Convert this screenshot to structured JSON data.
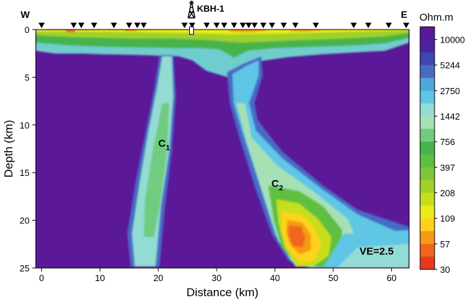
{
  "chart_data": {
    "type": "heatmap",
    "subtype": "resistivity-section",
    "xlabel": "Distance (km)",
    "ylabel": "Depth (km)",
    "xlim": [
      -1,
      63
    ],
    "ylim": [
      0,
      25
    ],
    "x_ticks": [
      0,
      10,
      20,
      30,
      40,
      50,
      60
    ],
    "y_ticks": [
      0,
      5,
      10,
      15,
      20,
      25
    ],
    "y_inverted": true,
    "corner_labels": {
      "west": "W",
      "east": "E"
    },
    "well": {
      "label": "KBH-1",
      "x": 25.7
    },
    "stations_x": [
      0,
      5.5,
      6.8,
      9,
      12.4,
      15,
      16.4,
      17.5,
      24.5,
      25.8,
      28.3,
      30,
      31.3,
      33,
      34.5,
      35.5,
      36.5,
      38,
      39.5,
      41.5,
      43.5,
      47,
      53.5,
      56,
      59.5,
      62.5
    ],
    "annotations": [
      {
        "text": "C",
        "sub": "1",
        "x": 20,
        "y": 12.3
      },
      {
        "text": "C",
        "sub": "2",
        "x": 39.4,
        "y": 16.5
      },
      {
        "text": "VE=2.5",
        "x": 54.5,
        "y": 23.6
      }
    ],
    "colorbar": {
      "title": "Ohm.m",
      "tick_labels": [
        "10000",
        "5244",
        "2750",
        "1442",
        "756",
        "397",
        "208",
        "109",
        "57",
        "30"
      ],
      "colors": [
        "#e8381e",
        "#f0661c",
        "#f59a17",
        "#ffd21a",
        "#eaeb17",
        "#c6de1d",
        "#9fd12a",
        "#7cc63a",
        "#5fbf40",
        "#47b34c",
        "#70cc7e",
        "#a6e1b6",
        "#93dcd4",
        "#5fc6e6",
        "#4fa6dc",
        "#4a6bc4",
        "#3e46b0",
        "#4c22a0",
        "#5b1898"
      ]
    }
  }
}
